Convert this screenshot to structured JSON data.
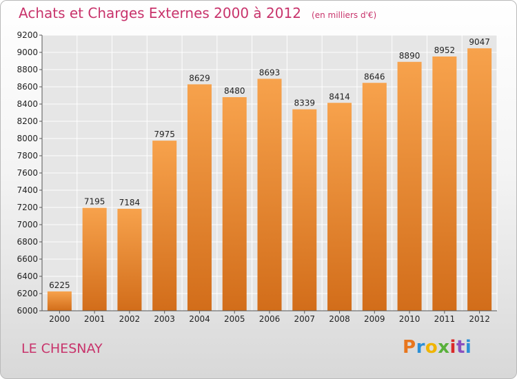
{
  "header": {
    "title": "Achats et Charges Externes 2000 à 2012",
    "unit": "(en milliers d'€)"
  },
  "footer": {
    "city": "LE CHESNAY",
    "brand": "Proxiti"
  },
  "chart_data": {
    "type": "bar",
    "title": "Achats et Charges Externes 2000 à 2012",
    "subtitle": "(en milliers d'€)",
    "categories": [
      "2000",
      "2001",
      "2002",
      "2003",
      "2004",
      "2005",
      "2006",
      "2007",
      "2008",
      "2009",
      "2010",
      "2011",
      "2012"
    ],
    "values": [
      6225,
      7195,
      7184,
      7975,
      8629,
      8480,
      8693,
      8339,
      8414,
      8646,
      8890,
      8952,
      9047
    ],
    "ylim": [
      6000,
      9200
    ],
    "yticks": [
      6000,
      6200,
      6400,
      6600,
      6800,
      7000,
      7200,
      7400,
      7600,
      7800,
      8000,
      8200,
      8400,
      8600,
      8800,
      9000,
      9200
    ],
    "grid": true,
    "bar_color_top": "#f7a24c",
    "bar_color_bottom": "#d26d1a"
  }
}
